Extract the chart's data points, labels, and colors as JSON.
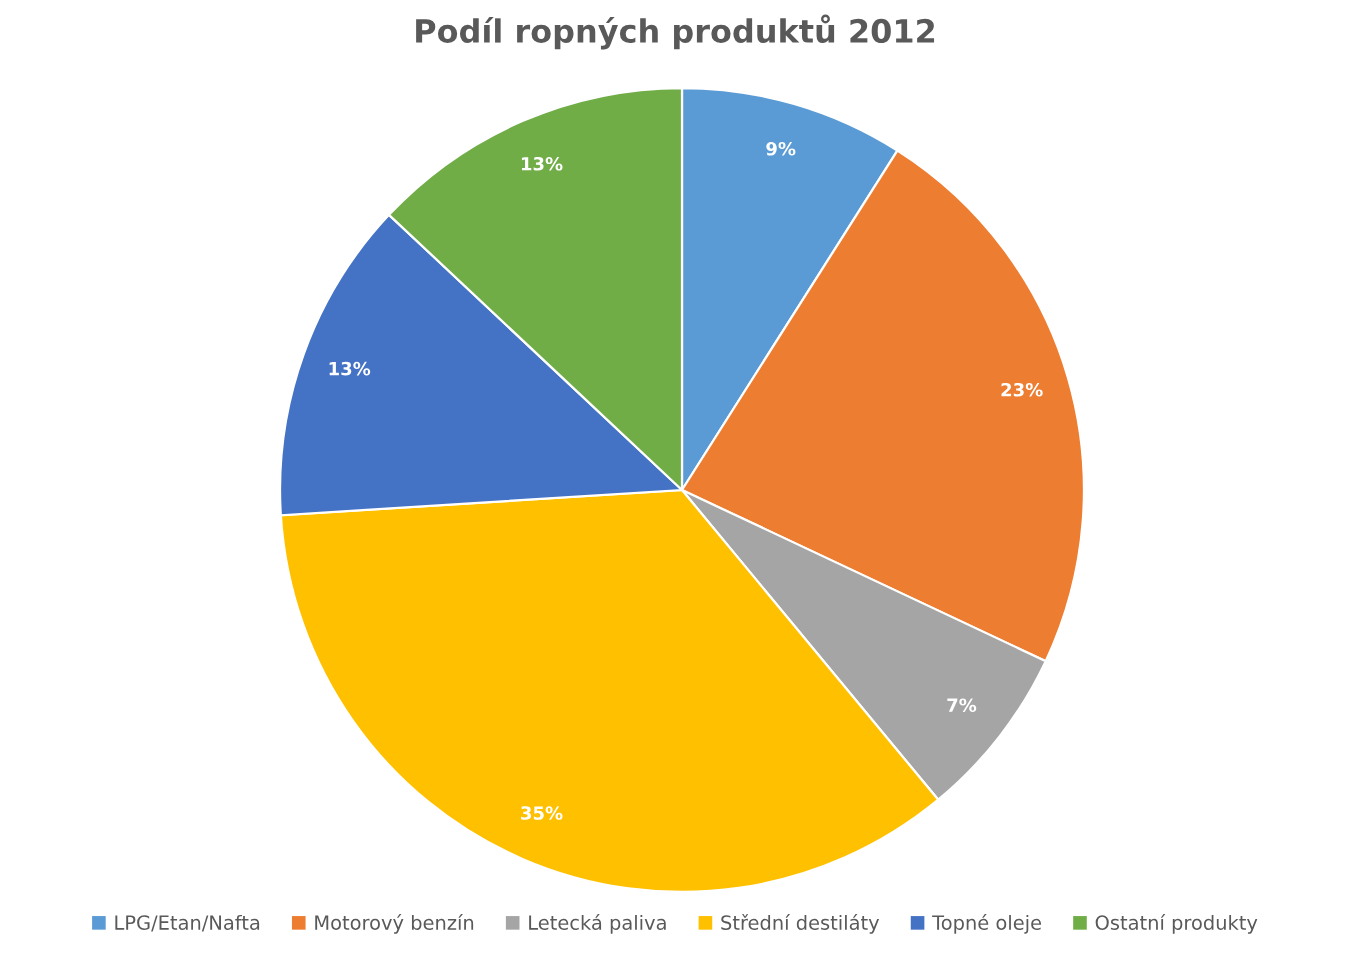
{
  "chart_data": {
    "type": "pie",
    "title": "Podíl ropných produktů 2012",
    "categories": [
      "LPG/Etan/Nafta",
      "Motorový benzín",
      "Letecká paliva",
      "Střední destiláty",
      "Topné oleje",
      "Ostatní produkty"
    ],
    "values": [
      9,
      23,
      7,
      35,
      13,
      13
    ],
    "colors": [
      "#5b9bd5",
      "#ed7d31",
      "#a5a5a5",
      "#ffc000",
      "#4472c4",
      "#70ad47"
    ],
    "value_labels": [
      "9%",
      "23%",
      "7%",
      "35%",
      "13%",
      "13%"
    ],
    "legend": "bottom"
  }
}
